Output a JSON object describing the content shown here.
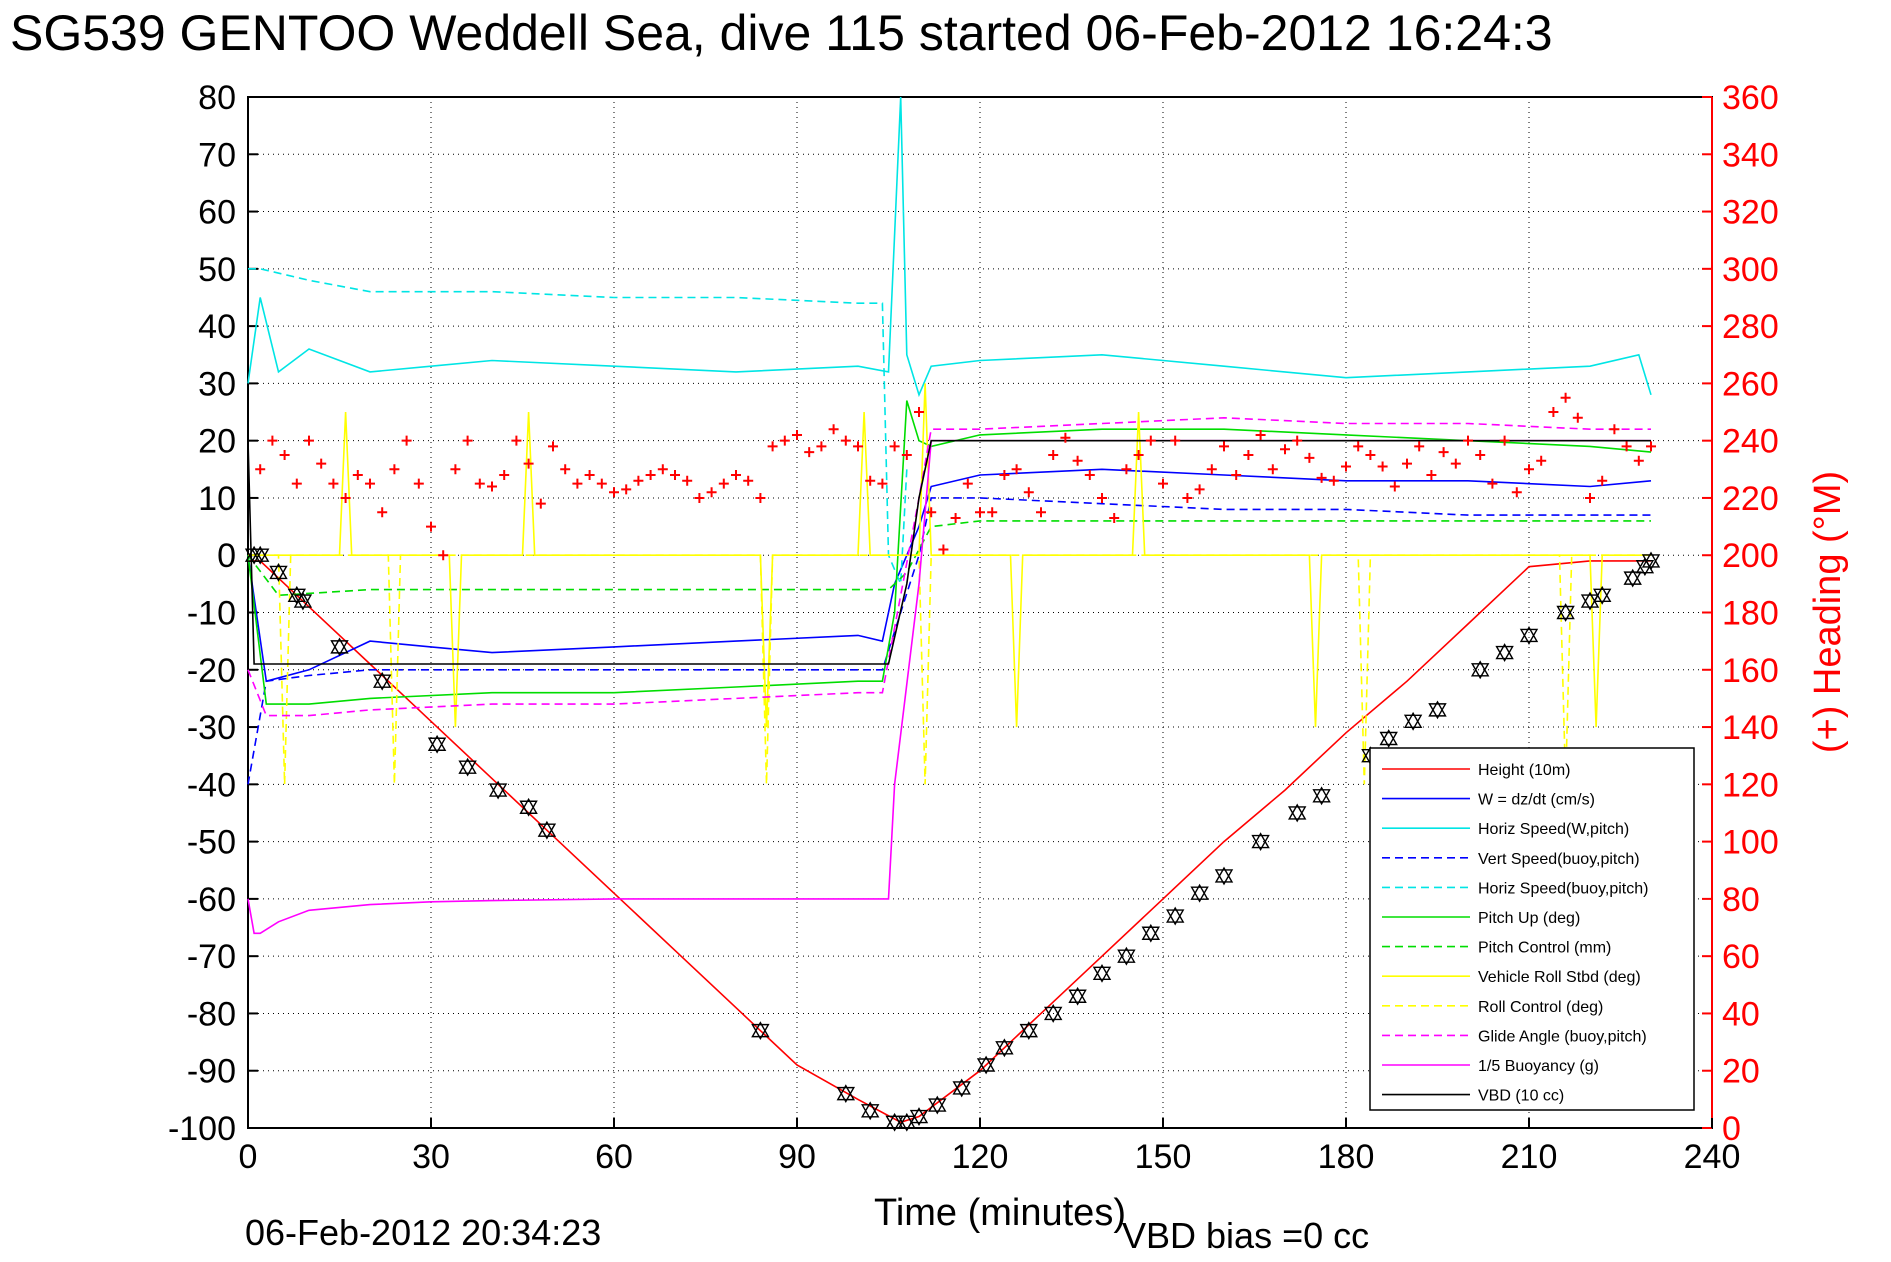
{
  "chart_data": {
    "type": "line",
    "title": "SG539 GENTOO Weddell Sea, dive 115 started 06-Feb-2012 16:24:3",
    "xlabel": "Time (minutes)",
    "ylabel_right": "(+) Heading (°M)",
    "footer_left": "06-Feb-2012 20:34:23",
    "footer_right": "VBD bias =0 cc",
    "xlim": [
      0,
      240
    ],
    "ylim": [
      -100,
      80
    ],
    "ylim_right": [
      0,
      360
    ],
    "x_ticks": [
      "0",
      "30",
      "60",
      "90",
      "120",
      "150",
      "180",
      "210",
      "240"
    ],
    "y_ticks": [
      "80",
      "70",
      "60",
      "50",
      "40",
      "30",
      "20",
      "10",
      "0",
      "-10",
      "-20",
      "-30",
      "-40",
      "-50",
      "-60",
      "-70",
      "-80",
      "-90",
      "-100"
    ],
    "y_ticks_right": [
      "360",
      "340",
      "320",
      "300",
      "280",
      "260",
      "240",
      "220",
      "200",
      "180",
      "160",
      "140",
      "120",
      "100",
      "80",
      "60",
      "40",
      "20",
      "0"
    ],
    "grid": true,
    "legend_position": "bottom-right",
    "series": [
      {
        "name": "Height (10m)",
        "color": "#ff0000",
        "style": "solid",
        "x": [
          0,
          2,
          10,
          20,
          30,
          40,
          50,
          60,
          70,
          80,
          90,
          100,
          107,
          110,
          120,
          130,
          140,
          150,
          160,
          170,
          180,
          190,
          200,
          210,
          220,
          230
        ],
        "y": [
          -1,
          -1,
          -9,
          -19,
          -29,
          -39,
          -49,
          -59,
          -69,
          -79,
          -89,
          -95,
          -99,
          -98,
          -90,
          -80,
          -70,
          -60,
          -50,
          -41,
          -31,
          -22,
          -12,
          -2,
          -1,
          -1
        ]
      },
      {
        "name": "W = dz/dt (cm/s)",
        "color": "#0000ff",
        "style": "solid",
        "x": [
          0,
          3,
          10,
          20,
          30,
          40,
          60,
          80,
          100,
          104,
          106,
          110,
          112,
          120,
          140,
          160,
          180,
          200,
          220,
          230
        ],
        "y": [
          0,
          -22,
          -20,
          -15,
          -16,
          -17,
          -16,
          -15,
          -14,
          -15,
          -5,
          5,
          12,
          14,
          15,
          14,
          13,
          13,
          12,
          13
        ]
      },
      {
        "name": "Horiz Speed(W,pitch)",
        "color": "#00e5e5",
        "style": "solid",
        "x": [
          0,
          2,
          5,
          10,
          20,
          30,
          40,
          60,
          80,
          100,
          105,
          107,
          108,
          110,
          112,
          120,
          140,
          160,
          180,
          200,
          220,
          228,
          230
        ],
        "y": [
          30,
          45,
          32,
          36,
          32,
          33,
          34,
          33,
          32,
          33,
          32,
          80,
          35,
          28,
          33,
          34,
          35,
          33,
          31,
          32,
          33,
          35,
          28
        ]
      },
      {
        "name": "Vert Speed(buoy,pitch)",
        "color": "#0000ff",
        "style": "dashed",
        "x": [
          0,
          3,
          10,
          20,
          40,
          60,
          80,
          100,
          104,
          110,
          112,
          120,
          140,
          160,
          180,
          200,
          220,
          230
        ],
        "y": [
          -40,
          -22,
          -21,
          -20,
          -20,
          -20,
          -20,
          -20,
          -20,
          0,
          10,
          10,
          9,
          8,
          8,
          7,
          7,
          7
        ]
      },
      {
        "name": "Horiz Speed(buoy,pitch)",
        "color": "#00e5e5",
        "style": "dashed",
        "x": [
          0,
          2,
          10,
          20,
          40,
          60,
          80,
          100,
          104,
          105,
          107,
          108
        ],
        "y": [
          50,
          50,
          48,
          46,
          46,
          45,
          45,
          44,
          44,
          0,
          -5,
          15
        ]
      },
      {
        "name": "Pitch Up (deg)",
        "color": "#00dd00",
        "style": "solid",
        "x": [
          0,
          3,
          10,
          20,
          40,
          60,
          80,
          100,
          104,
          106,
          108,
          110,
          112,
          120,
          140,
          160,
          180,
          200,
          220,
          230
        ],
        "y": [
          0,
          -26,
          -26,
          -25,
          -24,
          -24,
          -23,
          -22,
          -22,
          -10,
          27,
          20,
          19,
          21,
          22,
          22,
          21,
          20,
          19,
          18
        ]
      },
      {
        "name": "Pitch Control (mm)",
        "color": "#00dd00",
        "style": "dashed",
        "x": [
          0,
          5,
          20,
          40,
          60,
          80,
          100,
          105,
          108,
          112,
          120,
          140,
          160,
          180,
          200,
          220,
          230
        ],
        "y": [
          0,
          -7,
          -6,
          -6,
          -6,
          -6,
          -6,
          -6,
          -3,
          5,
          6,
          6,
          6,
          6,
          6,
          6,
          6
        ]
      },
      {
        "name": "Vehicle Roll Stbd (deg)",
        "color": "#ffff00",
        "style": "solid",
        "x": [
          0,
          3,
          15,
          16,
          17,
          30,
          33,
          34,
          35,
          45,
          46,
          47,
          60,
          84,
          85,
          86,
          100,
          101,
          102,
          110,
          111,
          112,
          125,
          126,
          127,
          145,
          146,
          147,
          160,
          174,
          175,
          176,
          200,
          220,
          221,
          222,
          230
        ],
        "y": [
          0,
          0,
          0,
          25,
          0,
          0,
          0,
          -30,
          0,
          0,
          25,
          0,
          0,
          0,
          -30,
          0,
          0,
          25,
          0,
          0,
          30,
          0,
          0,
          -30,
          0,
          0,
          25,
          0,
          0,
          0,
          -30,
          0,
          0,
          0,
          -30,
          0,
          0
        ]
      },
      {
        "name": "Roll Control (deg)",
        "color": "#ffff00",
        "style": "dashed",
        "x": [
          0,
          5,
          6,
          7,
          20,
          23,
          24,
          25,
          40,
          60,
          84,
          85,
          86,
          100,
          110,
          111,
          112,
          120,
          140,
          160,
          180,
          182,
          183,
          184,
          200,
          215,
          216,
          217,
          230
        ],
        "y": [
          0,
          0,
          -40,
          0,
          0,
          0,
          -40,
          0,
          0,
          0,
          0,
          -40,
          0,
          0,
          0,
          -40,
          0,
          0,
          0,
          0,
          0,
          0,
          -40,
          0,
          0,
          0,
          -40,
          0,
          0
        ]
      },
      {
        "name": "Glide Angle (buoy,pitch)",
        "color": "#ff00ff",
        "style": "dashed",
        "x": [
          0,
          3,
          10,
          20,
          40,
          60,
          80,
          100,
          104,
          110,
          112,
          120,
          140,
          160,
          180,
          200,
          220,
          230
        ],
        "y": [
          -20,
          -28,
          -28,
          -27,
          -26,
          -26,
          -25,
          -24,
          -24,
          10,
          22,
          22,
          23,
          24,
          23,
          23,
          22,
          22
        ]
      },
      {
        "name": "1/5 Buoyancy (g)",
        "color": "#ff00ff",
        "style": "solid",
        "x": [
          0,
          1,
          2,
          5,
          10,
          20,
          30,
          40,
          60,
          80,
          100,
          105,
          106,
          110,
          112,
          120,
          140,
          160,
          180,
          200,
          220,
          230
        ],
        "y": [
          -60,
          -66,
          -66,
          -64,
          -62,
          -61,
          -60.5,
          -60.3,
          -60,
          -60,
          -60,
          -60,
          -40,
          -5,
          20,
          20,
          20,
          20,
          20,
          20,
          20,
          20
        ]
      },
      {
        "name": "VBD (10 cc)",
        "color": "#000000",
        "style": "solid",
        "x": [
          0,
          1,
          2,
          104,
          105,
          108,
          110,
          112,
          120,
          200,
          230
        ],
        "y": [
          20,
          -19,
          -19,
          -19,
          -19,
          -5,
          10,
          20,
          20,
          20,
          20
        ]
      }
    ],
    "heading_series": {
      "name": "(+) Heading",
      "color": "#ff0000",
      "marker": "+",
      "axis": "right",
      "x": [
        2,
        4,
        6,
        8,
        10,
        12,
        14,
        16,
        18,
        20,
        22,
        24,
        26,
        28,
        30,
        32,
        34,
        36,
        38,
        40,
        42,
        44,
        46,
        48,
        50,
        52,
        54,
        56,
        58,
        60,
        62,
        64,
        66,
        68,
        70,
        72,
        74,
        76,
        78,
        80,
        82,
        84,
        86,
        88,
        90,
        92,
        94,
        96,
        98,
        100,
        102,
        104,
        106,
        108,
        110,
        112,
        114,
        116,
        118,
        120,
        122,
        124,
        126,
        128,
        130,
        132,
        134,
        136,
        138,
        140,
        142,
        144,
        146,
        148,
        150,
        152,
        154,
        156,
        158,
        160,
        162,
        164,
        166,
        168,
        170,
        172,
        174,
        176,
        178,
        180,
        182,
        184,
        186,
        188,
        190,
        192,
        194,
        196,
        198,
        200,
        202,
        204,
        206,
        208,
        210,
        212,
        214,
        216,
        218,
        220,
        222,
        224,
        226,
        228,
        230
      ],
      "y": [
        230,
        240,
        235,
        225,
        240,
        232,
        225,
        220,
        228,
        225,
        215,
        230,
        240,
        225,
        210,
        200,
        230,
        240,
        225,
        224,
        228,
        240,
        232,
        218,
        238,
        230,
        225,
        228,
        225,
        222,
        223,
        226,
        228,
        230,
        228,
        226,
        220,
        222,
        225,
        228,
        226,
        220,
        238,
        240,
        242,
        236,
        238,
        244,
        240,
        238,
        226,
        225,
        238,
        235,
        250,
        215,
        202,
        213,
        225,
        215,
        215,
        228,
        230,
        222,
        215,
        235,
        241,
        233,
        228,
        220,
        213,
        230,
        235,
        240,
        225,
        240,
        220,
        223,
        230,
        238,
        228,
        235,
        242,
        230,
        237,
        240,
        234,
        227,
        226,
        231,
        238,
        235,
        231,
        224,
        232,
        238,
        228,
        236,
        232,
        240,
        235,
        225,
        240,
        222,
        230,
        233,
        250,
        255,
        248,
        220,
        226,
        244,
        238,
        233,
        238
      ]
    },
    "markers": {
      "name": "Depth marker",
      "color": "#000000",
      "symbol": "triangle-pair",
      "x": [
        1,
        2,
        5,
        8,
        9,
        15,
        22,
        31,
        36,
        41,
        46,
        49,
        84,
        98,
        102,
        106,
        108,
        110,
        113,
        117,
        121,
        124,
        128,
        132,
        136,
        140,
        144,
        148,
        152,
        156,
        160,
        166,
        172,
        176,
        184,
        187,
        191,
        195,
        202,
        206,
        210,
        216,
        220,
        222,
        227,
        229,
        230
      ],
      "y": [
        0,
        0,
        -3,
        -7,
        -8,
        -16,
        -22,
        -33,
        -37,
        -41,
        -44,
        -48,
        -83,
        -94,
        -97,
        -99,
        -99,
        -98,
        -96,
        -93,
        -89,
        -86,
        -83,
        -80,
        -77,
        -73,
        -70,
        -66,
        -63,
        -59,
        -56,
        -50,
        -45,
        -42,
        -35,
        -32,
        -29,
        -27,
        -20,
        -17,
        -14,
        -10,
        -8,
        -7,
        -4,
        -2,
        -1
      ]
    }
  }
}
